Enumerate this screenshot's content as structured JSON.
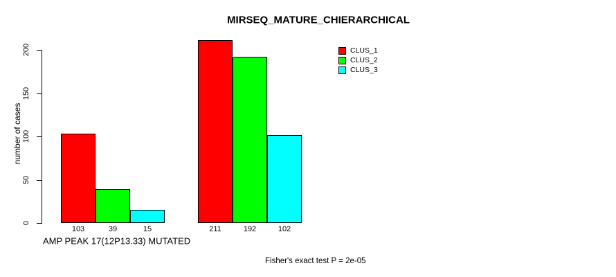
{
  "chart_data": {
    "type": "bar",
    "title": "MIRSEQ_MATURE_CHIERARCHICAL",
    "ylabel": "number of cases",
    "xlabel": "AMP PEAK 17(12P13.33) MUTATED",
    "footnote": "Fisher's exact test P = 2e-05",
    "ylim": [
      0,
      200
    ],
    "yticks": [
      0,
      50,
      100,
      150,
      200
    ],
    "grid": false,
    "legend_position": "top-right",
    "group_count": 2,
    "series": [
      {
        "name": "CLUS_1",
        "color": "#ff0000",
        "values": [
          103,
          211
        ]
      },
      {
        "name": "CLUS_2",
        "color": "#00ff00",
        "values": [
          39,
          192
        ]
      },
      {
        "name": "CLUS_3",
        "color": "#00ffff",
        "values": [
          15,
          102
        ]
      }
    ]
  }
}
